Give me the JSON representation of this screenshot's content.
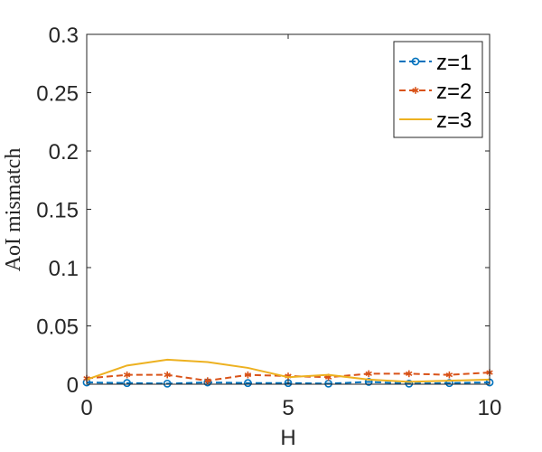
{
  "chart_data": {
    "type": "line",
    "title": "",
    "xlabel": "H",
    "ylabel": "AoI mismatch",
    "xlim": [
      0,
      10
    ],
    "ylim": [
      0,
      0.3
    ],
    "xticks": [
      0,
      5,
      10
    ],
    "yticks": [
      0,
      0.05,
      0.1,
      0.15,
      0.2,
      0.25,
      0.3
    ],
    "ytick_labels": [
      "0",
      "0.05",
      "0.1",
      "0.15",
      "0.2",
      "0.25",
      "0.3"
    ],
    "xtick_labels": [
      "0",
      "5",
      "10"
    ],
    "grid": false,
    "legend_position": "top-right",
    "x": [
      0,
      1,
      2,
      3,
      4,
      5,
      6,
      7,
      8,
      9,
      10
    ],
    "series": [
      {
        "name": "z=1",
        "color": "#0072BD",
        "style": "dashed",
        "marker": "circle",
        "values": [
          0.0015,
          0.001,
          0.0005,
          0.0015,
          0.001,
          0.001,
          0.0005,
          0.002,
          0.0005,
          0.001,
          0.0015
        ]
      },
      {
        "name": "z=2",
        "color": "#D95319",
        "style": "dashed",
        "marker": "asterisk",
        "values": [
          0.005,
          0.008,
          0.008,
          0.003,
          0.008,
          0.007,
          0.006,
          0.009,
          0.009,
          0.008,
          0.01
        ]
      },
      {
        "name": "z=3",
        "color": "#EDB120",
        "style": "solid",
        "marker": "none",
        "values": [
          0.004,
          0.016,
          0.021,
          0.019,
          0.014,
          0.006,
          0.008,
          0.004,
          0.002,
          0.003,
          0.004
        ]
      }
    ]
  }
}
